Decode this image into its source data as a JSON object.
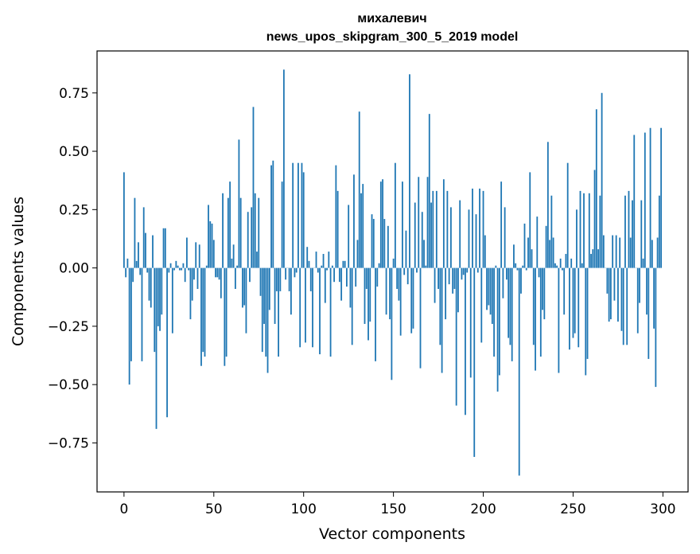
{
  "chart_data": {
    "type": "bar",
    "title_line1": "михалевич",
    "title_line2": "news_upos_skipgram_300_5_2019 model",
    "xlabel": "Vector components",
    "ylabel": "Components values",
    "xlim": [
      -15,
      314
    ],
    "ylim": [
      -0.96,
      0.93
    ],
    "xticks": [
      0,
      50,
      100,
      150,
      200,
      250,
      300
    ],
    "yticks": [
      -0.75,
      -0.5,
      -0.25,
      0.0,
      0.25,
      0.5,
      0.75
    ],
    "ytick_labels": [
      "−0.75",
      "−0.50",
      "−0.25",
      "0.00",
      "0.25",
      "0.50",
      "0.75"
    ],
    "bar_color": "#1f77b4",
    "values": [
      0.41,
      -0.04,
      0.04,
      -0.5,
      -0.4,
      -0.06,
      0.3,
      0.03,
      0.11,
      -0.03,
      -0.4,
      0.26,
      0.15,
      -0.02,
      -0.14,
      -0.17,
      0.14,
      -0.36,
      -0.69,
      -0.25,
      -0.27,
      -0.2,
      0.17,
      0.17,
      -0.64,
      -0.02,
      0.02,
      -0.28,
      -0.01,
      0.03,
      0.01,
      -0.01,
      -0.01,
      0.02,
      -0.06,
      0.13,
      -0.01,
      -0.22,
      -0.14,
      -0.05,
      0.11,
      -0.09,
      0.1,
      -0.42,
      -0.36,
      -0.38,
      0.01,
      0.27,
      0.2,
      0.19,
      0.12,
      -0.04,
      -0.04,
      -0.05,
      -0.13,
      0.32,
      -0.42,
      -0.38,
      0.3,
      0.37,
      0.04,
      0.1,
      -0.09,
      0.01,
      0.55,
      0.3,
      -0.17,
      -0.16,
      -0.28,
      0.24,
      -0.06,
      0.26,
      0.69,
      0.32,
      0.07,
      0.3,
      -0.12,
      -0.36,
      -0.24,
      -0.38,
      -0.45,
      -0.18,
      0.44,
      0.46,
      -0.24,
      -0.1,
      -0.38,
      -0.1,
      0.37,
      0.85,
      -0.05,
      0.0,
      -0.1,
      -0.2,
      0.45,
      -0.04,
      -0.02,
      0.45,
      -0.34,
      0.45,
      0.41,
      -0.32,
      0.09,
      0.03,
      -0.1,
      -0.34,
      0.0,
      0.07,
      -0.02,
      -0.37,
      0.01,
      0.06,
      -0.15,
      -0.01,
      0.07,
      -0.38,
      0.01,
      -0.06,
      0.44,
      0.33,
      -0.06,
      -0.14,
      0.03,
      0.03,
      -0.08,
      0.27,
      -0.17,
      -0.33,
      0.4,
      -0.08,
      0.12,
      0.67,
      0.32,
      0.36,
      -0.24,
      -0.09,
      -0.31,
      -0.23,
      0.23,
      0.21,
      -0.4,
      -0.08,
      0.02,
      0.37,
      0.38,
      0.21,
      -0.2,
      0.18,
      -0.22,
      -0.48,
      0.04,
      0.45,
      -0.09,
      -0.14,
      -0.29,
      0.37,
      -0.03,
      0.16,
      -0.07,
      0.83,
      -0.28,
      -0.26,
      0.28,
      -0.02,
      0.39,
      -0.43,
      0.24,
      0.12,
      0.01,
      0.39,
      0.66,
      0.28,
      0.33,
      -0.15,
      0.33,
      -0.09,
      -0.33,
      -0.45,
      0.38,
      -0.22,
      0.33,
      -0.07,
      0.26,
      -0.11,
      -0.09,
      -0.59,
      -0.19,
      0.29,
      -0.05,
      -0.03,
      -0.63,
      -0.02,
      0.25,
      -0.47,
      0.34,
      -0.81,
      0.23,
      -0.02,
      0.34,
      -0.32,
      0.33,
      0.14,
      -0.18,
      -0.16,
      -0.2,
      -0.24,
      -0.38,
      0.01,
      -0.53,
      -0.46,
      0.37,
      -0.13,
      0.26,
      -0.05,
      -0.3,
      -0.33,
      -0.4,
      0.1,
      0.02,
      -0.01,
      -0.89,
      -0.11,
      0.01,
      0.19,
      -0.01,
      0.13,
      0.41,
      0.08,
      -0.33,
      -0.44,
      0.22,
      -0.04,
      -0.38,
      -0.18,
      -0.22,
      0.18,
      0.54,
      0.12,
      0.31,
      0.13,
      0.02,
      0.01,
      -0.45,
      0.04,
      -0.01,
      -0.2,
      0.06,
      0.45,
      -0.35,
      0.04,
      -0.3,
      -0.28,
      0.25,
      -0.34,
      0.33,
      0.02,
      0.32,
      -0.46,
      -0.39,
      0.32,
      0.06,
      0.08,
      0.42,
      0.68,
      0.08,
      0.31,
      0.75,
      0.14,
      0.0,
      -0.11,
      -0.23,
      -0.22,
      0.14,
      -0.14,
      0.14,
      -0.23,
      0.13,
      -0.27,
      -0.33,
      0.31,
      -0.33,
      0.33,
      0.13,
      0.29,
      0.57,
      0.0,
      -0.28,
      -0.15,
      0.29,
      0.04,
      0.58,
      -0.2,
      -0.39,
      0.6,
      0.12,
      -0.26,
      -0.51,
      0.13,
      0.31,
      0.6
    ]
  }
}
